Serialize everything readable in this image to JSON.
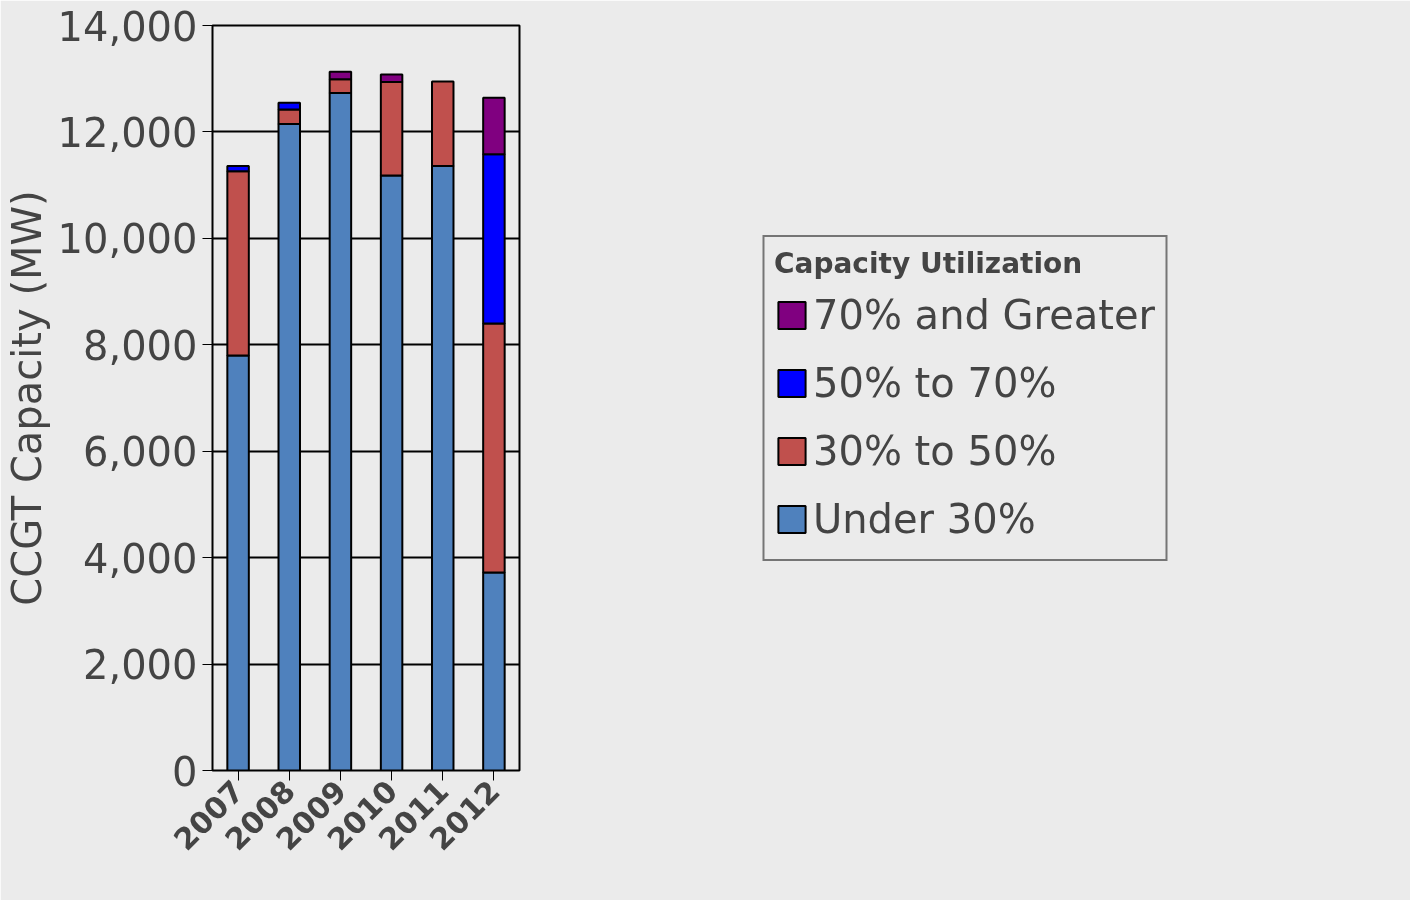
{
  "chart_data": {
    "type": "bar",
    "stacked": true,
    "ylabel": "CCGT Capacity (MW)",
    "legend_title": "Capacity Utilization",
    "legend": "right",
    "grid": "y",
    "categories": [
      "2007",
      "2008",
      "2009",
      "2010",
      "2011",
      "2012"
    ],
    "ylim": [
      0,
      14000
    ],
    "yticks": [
      0,
      {
        "value": 2000,
        "label": "2,000"
      },
      {
        "value": 4000,
        "label": "4,000"
      },
      {
        "value": 6000,
        "label": "6,000"
      },
      {
        "value": 8000,
        "label": "8,000"
      },
      {
        "value": 10000,
        "label": "10,000"
      },
      {
        "value": 12000,
        "label": "12,000"
      },
      {
        "value": 14000,
        "label": "14,000"
      }
    ],
    "series": [
      {
        "name": "Under 30%",
        "color": "#4f81bd",
        "values": [
          7800,
          12150,
          12730,
          11180,
          11360,
          3720
        ]
      },
      {
        "name": "30% to 50%",
        "color": "#c0504d",
        "values": [
          3460,
          270,
          260,
          1760,
          1590,
          4680
        ]
      },
      {
        "name": "50% to 70%",
        "color": "#0000ff",
        "values": [
          100,
          130,
          null,
          null,
          null,
          3180
        ]
      },
      {
        "name": "70% and Greater",
        "color": "#800080",
        "values": [
          null,
          null,
          140,
          140,
          null,
          1060
        ]
      }
    ]
  }
}
